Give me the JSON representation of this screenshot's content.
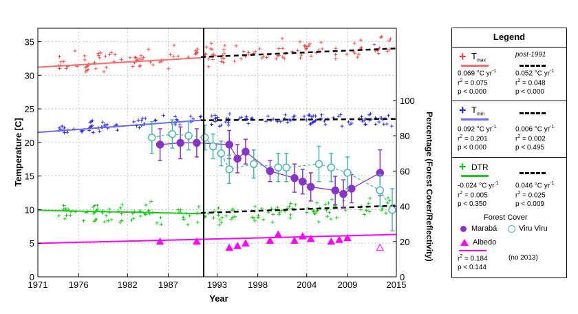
{
  "chart_data": {
    "type": "scatter",
    "xlabel": "Year",
    "ylabel_left": "Temperature [C]",
    "ylabel_right": "Percentage (Forest Cover/Reflectivity)",
    "x_ticks": [
      1971,
      1976,
      1982,
      1987,
      1993,
      1998,
      2004,
      2009,
      2015
    ],
    "x_range": [
      1971,
      2015
    ],
    "y_left_ticks": [
      0,
      5,
      10,
      15,
      20,
      25,
      30,
      35
    ],
    "y_left_range": [
      0,
      37
    ],
    "y_right_ticks": [
      0,
      20,
      40,
      60,
      80,
      100
    ],
    "y_right_range": [
      0,
      141
    ],
    "breakpoint_year": 1991,
    "grid": true,
    "colors": {
      "tmax": "#ff3b3b",
      "tmin": "#1a1aff",
      "dtr": "#00cc00",
      "albedo": "#ff00ff",
      "maraba": "#8833cc",
      "viru_viru": "#44b8b0",
      "tmax_fit": "#ff6b6b",
      "tmin_fit": "#6a6af0",
      "dtr_fit": "#1ec81e",
      "post1991_fit": "#000000"
    },
    "series": [
      {
        "name": "Tmax trend (pre-1991)",
        "kind": "fit",
        "x": [
          1971,
          1991
        ],
        "y": [
          31.2,
          32.6
        ]
      },
      {
        "name": "Tmax trend (post-1991)",
        "kind": "fit-dashed",
        "x": [
          1991,
          2015
        ],
        "y": [
          32.7,
          34.0
        ]
      },
      {
        "name": "Tmin trend (pre-1991)",
        "kind": "fit",
        "x": [
          1971,
          1991
        ],
        "y": [
          21.5,
          23.3
        ]
      },
      {
        "name": "Tmin trend (post-1991)",
        "kind": "fit-dashed",
        "x": [
          1991,
          2015
        ],
        "y": [
          23.3,
          23.5
        ]
      },
      {
        "name": "DTR trend (pre-1991)",
        "kind": "fit",
        "x": [
          1971,
          1991
        ],
        "y": [
          9.9,
          9.4
        ]
      },
      {
        "name": "DTR trend (post-1991)",
        "kind": "fit-dashed",
        "x": [
          1991,
          2015
        ],
        "y": [
          9.5,
          10.6
        ]
      },
      {
        "name": "Albedo trend",
        "kind": "fit",
        "x": [
          1971,
          2015
        ],
        "y": [
          19.0,
          24.0
        ]
      },
      {
        "name": "Tmax",
        "kind": "scatter",
        "center": [
          [
            1974,
            31.6
          ],
          [
            1977,
            32.0
          ],
          [
            1980,
            32.3
          ],
          [
            1983,
            32.5
          ],
          [
            1986,
            32.7
          ],
          [
            1989,
            33.0
          ],
          [
            1992,
            33.0
          ],
          [
            1995,
            33.4
          ],
          [
            1998,
            33.6
          ],
          [
            2001,
            33.8
          ],
          [
            2004,
            33.9
          ],
          [
            2007,
            34.0
          ],
          [
            2010,
            34.1
          ],
          [
            2014,
            34.2
          ]
        ],
        "spread": 2.0
      },
      {
        "name": "Tmin",
        "kind": "scatter",
        "center": [
          [
            1974,
            22.0
          ],
          [
            1977,
            22.3
          ],
          [
            1980,
            22.6
          ],
          [
            1983,
            22.9
          ],
          [
            1986,
            23.1
          ],
          [
            1989,
            23.2
          ],
          [
            1992,
            23.3
          ],
          [
            1995,
            23.3
          ],
          [
            1998,
            23.5
          ],
          [
            2001,
            23.4
          ],
          [
            2004,
            23.4
          ],
          [
            2007,
            23.5
          ],
          [
            2010,
            23.4
          ],
          [
            2014,
            23.5
          ]
        ],
        "spread": 1.1
      },
      {
        "name": "DTR",
        "kind": "scatter",
        "center": [
          [
            1974,
            9.6
          ],
          [
            1977,
            9.7
          ],
          [
            1980,
            9.5
          ],
          [
            1983,
            9.6
          ],
          [
            1986,
            9.5
          ],
          [
            1989,
            9.3
          ],
          [
            1992,
            9.2
          ],
          [
            1995,
            9.4
          ],
          [
            1998,
            9.6
          ],
          [
            2001,
            9.6
          ],
          [
            2004,
            9.8
          ],
          [
            2007,
            10.0
          ],
          [
            2010,
            10.2
          ],
          [
            2014,
            10.5
          ]
        ],
        "spread": 1.9
      },
      {
        "name": "Marabá",
        "kind": "errorbar",
        "x": [
          1986,
          1988.5,
          1990.5,
          1994.5,
          1995.5,
          1996.5,
          1999.5,
          2002.5,
          2003.5,
          2004.5,
          2007.5,
          2008.5,
          2009.5,
          2013
        ],
        "y": [
          75,
          76,
          76,
          75,
          67,
          71,
          60,
          56,
          54,
          51,
          49,
          47,
          50,
          59
        ],
        "err": [
          9,
          9,
          8,
          8,
          8,
          7,
          6,
          8,
          7,
          8,
          8,
          8,
          8,
          13
        ]
      },
      {
        "name": "Viru Viru",
        "kind": "errorbar",
        "x": [
          1985,
          1987.5,
          1989.5,
          1991.5,
          1992.5,
          1993.5,
          1994.5,
          1997.5,
          2000.5,
          2001.5,
          2005.5,
          2007,
          2009,
          2013,
          2014.5
        ],
        "y": [
          79,
          81,
          80,
          79,
          74,
          70,
          61,
          64,
          62,
          62,
          64,
          62,
          59,
          49,
          38
        ],
        "err": [
          9,
          8,
          8,
          7,
          7,
          7,
          8,
          8,
          8,
          8,
          10,
          8,
          9,
          9,
          12
        ]
      },
      {
        "name": "Albedo",
        "kind": "markers",
        "x": [
          1986,
          1990.5,
          1994.5,
          1995.5,
          1996.5,
          1999.5,
          2000.5,
          2002.5,
          2003.5,
          2004.5,
          2007,
          2008,
          2009
        ],
        "y": [
          20,
          20,
          16.5,
          17.5,
          19,
          20.5,
          24,
          20.5,
          23,
          21.5,
          20,
          21,
          22
        ]
      },
      {
        "name": "Albedo 2013",
        "kind": "marker-open",
        "x": [
          2013
        ],
        "y": [
          16.5
        ]
      }
    ]
  },
  "legend": {
    "title": "Legend",
    "tmax_label": "T",
    "tmax_sub": "max",
    "tmin_label": "T",
    "tmin_sub": "min",
    "post_label": "post-1991",
    "tmax_pre_slope": "0.069 °C yr",
    "tmax_pre_r2": "= 0.075",
    "tmax_pre_p": "p < 0.000",
    "tmax_post_slope": "0.052 °C yr",
    "tmax_post_r2": "= 0.048",
    "tmax_post_p": "p < 0.000",
    "tmin_pre_slope": "0.092 °C yr",
    "tmin_pre_r2": "= 0.201",
    "tmin_pre_p": "p < 0.000",
    "tmin_post_slope": "0.006 °C yr",
    "tmin_post_r2": "= 0.002",
    "tmin_post_p": "p < 0.495",
    "dtr_label": "DTR",
    "dtr_pre_slope": "-0.024 °C yr",
    "dtr_pre_r2": "= 0.005",
    "dtr_pre_p": "p < 0.350",
    "dtr_post_slope": "0.046 °C yr",
    "dtr_post_r2": "= 0.025",
    "dtr_post_p": "p < 0.009",
    "forest_label": "Forest Cover",
    "maraba_label": "Marabá",
    "viru_label": "Viru Viru",
    "albedo_label": "Albedo",
    "albedo_r2": "= 0.184",
    "albedo_note": "(no 2013)",
    "albedo_p": "p < 0.144",
    "r_letter": "r",
    "superscript_2": "2",
    "superscript_neg1": "-1"
  }
}
